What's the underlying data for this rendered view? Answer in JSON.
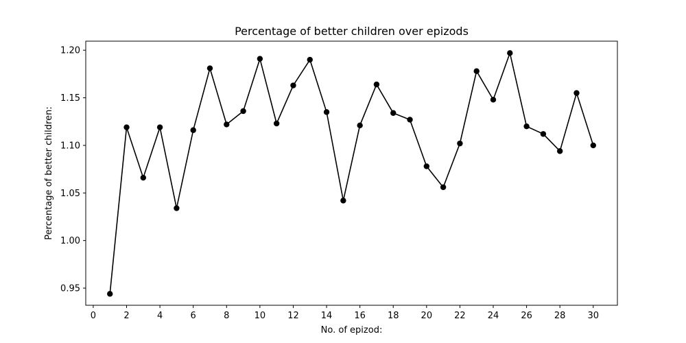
{
  "chart_data": {
    "type": "line",
    "title": "Percentage of better children over epizods",
    "xlabel": "No. of epizod:",
    "ylabel": "Percentage of better children:",
    "xlim": [
      -0.45,
      31.45
    ],
    "ylim": [
      0.932,
      1.2095
    ],
    "xticks": [
      0,
      2,
      4,
      6,
      8,
      10,
      12,
      14,
      16,
      18,
      20,
      22,
      24,
      26,
      28,
      30
    ],
    "yticks": [
      0.95,
      1.0,
      1.05,
      1.1,
      1.15,
      1.2
    ],
    "grid": false,
    "series": [
      {
        "color": "#000000",
        "marker": "circle",
        "x": [
          1,
          2,
          3,
          4,
          5,
          6,
          7,
          8,
          9,
          10,
          11,
          12,
          13,
          14,
          15,
          16,
          17,
          18,
          19,
          20,
          21,
          22,
          23,
          24,
          25,
          26,
          27,
          28,
          29,
          30
        ],
        "values": [
          0.944,
          1.119,
          1.066,
          1.119,
          1.034,
          1.116,
          1.181,
          1.122,
          1.136,
          1.191,
          1.123,
          1.163,
          1.19,
          1.135,
          1.042,
          1.121,
          1.164,
          1.134,
          1.127,
          1.078,
          1.056,
          1.102,
          1.178,
          1.148,
          1.197,
          1.12,
          1.112,
          1.094,
          1.155,
          1.1
        ]
      }
    ]
  }
}
